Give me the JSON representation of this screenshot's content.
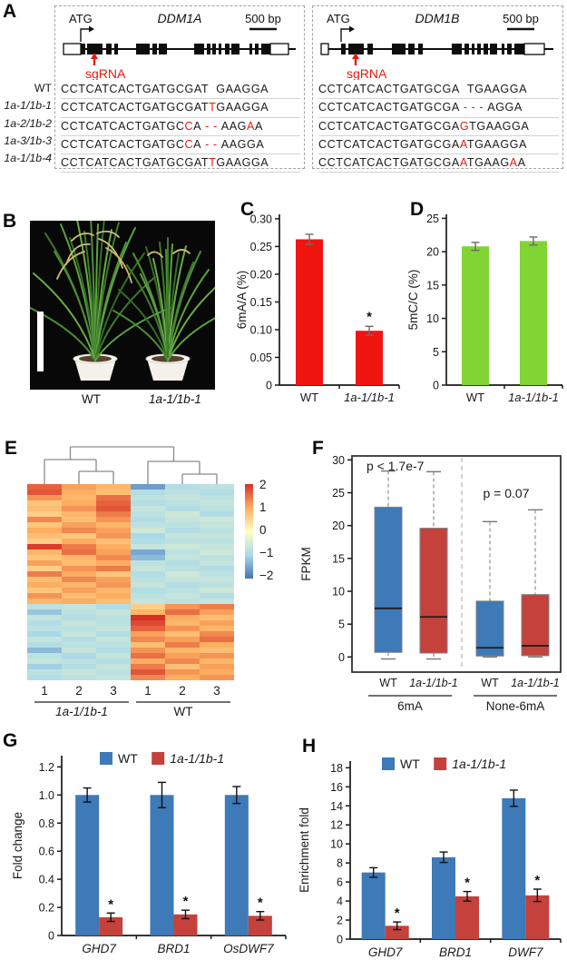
{
  "panels": {
    "A": "A",
    "B": "B",
    "C": "C",
    "D": "D",
    "E": "E",
    "F": "F",
    "G": "G",
    "H": "H"
  },
  "panelA": {
    "genes": [
      {
        "name": "DDM1A",
        "atg_label": "ATG",
        "scale_label": "500 bp",
        "sgrna_label": "sgRNA",
        "utrL": [
          8,
          19
        ],
        "utrR": [
          236,
          20
        ],
        "sgrna_x": 42,
        "atg_x": 27,
        "exons": [
          [
            27,
            5
          ],
          [
            34,
            17
          ],
          [
            55,
            6
          ],
          [
            64,
            4
          ],
          [
            88,
            15
          ],
          [
            106,
            5
          ],
          [
            113,
            9
          ],
          [
            152,
            11
          ],
          [
            166,
            4
          ],
          [
            172,
            4
          ],
          [
            179,
            3
          ],
          [
            186,
            5
          ],
          [
            193,
            9
          ],
          [
            213,
            3
          ],
          [
            219,
            4
          ],
          [
            226,
            10
          ]
        ]
      },
      {
        "name": "DDM1B",
        "atg_label": "ATG",
        "scale_label": "500 bp",
        "sgrna_label": "sgRNA",
        "utrL": [
          8,
          8
        ],
        "utrR": [
          232,
          22
        ],
        "sgrna_x": 46,
        "atg_x": 30,
        "exons": [
          [
            30,
            5
          ],
          [
            38,
            17
          ],
          [
            59,
            6
          ],
          [
            86,
            15
          ],
          [
            104,
            7
          ],
          [
            115,
            5
          ],
          [
            152,
            11
          ],
          [
            166,
            5
          ],
          [
            174,
            3
          ],
          [
            180,
            4
          ],
          [
            187,
            5
          ],
          [
            194,
            8
          ],
          [
            207,
            3
          ],
          [
            213,
            5
          ],
          [
            221,
            11
          ]
        ]
      }
    ],
    "row_labels": [
      {
        "text": "WT",
        "italic": false
      },
      {
        "text": "1a-1/1b-1",
        "italic": true
      },
      {
        "text": "1a-2/1b-2",
        "italic": true
      },
      {
        "text": "1a-3/1b-3",
        "italic": true
      },
      {
        "text": "1a-1/1b-4",
        "italic": true
      }
    ],
    "seq_left": [
      [
        [
          "CCTCATCACTGATGCGAT",
          "k"
        ],
        [
          "  ",
          "k"
        ],
        [
          "GAAGGA",
          "k"
        ]
      ],
      [
        [
          "CCTCATCACTGATGCGAT",
          "k"
        ],
        [
          "T",
          "r"
        ],
        [
          "GAAGGA",
          "k"
        ]
      ],
      [
        [
          "CCTCATCACTGATGC",
          "k"
        ],
        [
          "C",
          "r"
        ],
        [
          "A",
          "k"
        ],
        [
          " - - ",
          "r"
        ],
        [
          "AAG",
          "k"
        ],
        [
          "A",
          "r"
        ],
        [
          "A",
          "k"
        ]
      ],
      [
        [
          "CCTCATCACTGATGC",
          "k"
        ],
        [
          "C",
          "r"
        ],
        [
          "A",
          "k"
        ],
        [
          " - - ",
          "r"
        ],
        [
          "AAGGA",
          "k"
        ]
      ],
      [
        [
          "CCTCATCACTGATGCGAT",
          "k"
        ],
        [
          "T",
          "r"
        ],
        [
          "GAAGGA",
          "k"
        ]
      ]
    ],
    "seq_right": [
      [
        [
          "CCTCATCACTGATGCGA",
          "k"
        ],
        [
          "  ",
          "k"
        ],
        [
          "TGAAGGA",
          "k"
        ]
      ],
      [
        [
          "CCTCATCACTGATGCGA",
          "k"
        ],
        [
          " - - - ",
          "r"
        ],
        [
          "AGGA",
          "k"
        ]
      ],
      [
        [
          "CCTCATCACTGATGCGA",
          "k"
        ],
        [
          "G",
          "r"
        ],
        [
          "TGAAGGA",
          "k"
        ]
      ],
      [
        [
          "CCTCATCACTGATGCGA",
          "k"
        ],
        [
          "A",
          "r"
        ],
        [
          "TGAAGGA",
          "k"
        ]
      ],
      [
        [
          "CCTCATCACTGATGCGA",
          "k"
        ],
        [
          "A",
          "r"
        ],
        [
          "TGAAG",
          "k"
        ],
        [
          "A",
          "r"
        ],
        [
          "A",
          "k"
        ]
      ]
    ]
  },
  "panelB": {
    "labels": [
      {
        "text": "WT",
        "italic": false
      },
      {
        "text": "1a-1/1b-1",
        "italic": true
      }
    ]
  },
  "colors": {
    "red_bar": "#f01511",
    "green_bar": "#80d434",
    "blue": "#3e79b8",
    "brick": "#c5413c",
    "sgrna_red": "#e8190f",
    "axis": "#1a1a1a",
    "heatmap_stops": [
      "#4575b4",
      "#abd9e9",
      "#ffffbf",
      "#fdae61",
      "#d73027"
    ]
  },
  "chart_data": [
    {
      "id": "C",
      "type": "bar",
      "ylabel": "6mA/A (%)",
      "categories": [
        {
          "text": "WT",
          "italic": false
        },
        {
          "text": "1a-1/1b-1",
          "italic": true
        }
      ],
      "values": [
        0.263,
        0.098
      ],
      "errors": [
        0.009,
        0.008
      ],
      "sig": [
        "",
        "*"
      ],
      "bar_color": "#f01511",
      "err_color": "#6b6b6b",
      "ylim": [
        0,
        0.308
      ],
      "yticks": [
        0,
        0.05,
        0.1,
        0.15,
        0.2,
        0.25,
        0.3
      ],
      "ytick_labels": [
        "0",
        "0.05",
        "0.10",
        "0.15",
        "0.20",
        "0.25",
        "0.30"
      ]
    },
    {
      "id": "D",
      "type": "bar",
      "ylabel": "5mC/C (%)",
      "categories": [
        {
          "text": "WT",
          "italic": false
        },
        {
          "text": "1a-1/1b-1",
          "italic": true
        }
      ],
      "values": [
        20.8,
        21.6
      ],
      "errors": [
        0.6,
        0.6
      ],
      "sig": [
        "",
        ""
      ],
      "bar_color": "#80d434",
      "err_color": "#6b6b6b",
      "ylim": [
        0,
        25.6
      ],
      "yticks": [
        0,
        5,
        10,
        15,
        20,
        25
      ],
      "ytick_labels": [
        "0",
        "5",
        "10",
        "15",
        "20",
        "25"
      ]
    },
    {
      "id": "E",
      "type": "heatmap",
      "col_labels": [
        "1",
        "2",
        "3",
        "1",
        "2",
        "3"
      ],
      "group_labels": [
        {
          "text": "1a-1/1b-1",
          "italic": true,
          "serif": false
        },
        {
          "text": "WT",
          "italic": false,
          "serif": true
        }
      ],
      "colorbar_ticks": [
        "2",
        "1",
        "0",
        "−1",
        "−2"
      ],
      "value_domain": [
        -2,
        2
      ],
      "matrix": [
        [
          1.6,
          1.1,
          0.9,
          -1.6,
          -0.9,
          -0.8
        ],
        [
          1.7,
          1.0,
          0.8,
          -0.9,
          -0.8,
          -0.9
        ],
        [
          1.2,
          0.9,
          1.5,
          -0.8,
          -0.7,
          -0.8
        ],
        [
          0.7,
          1.0,
          1.6,
          -0.9,
          -0.8,
          -0.7
        ],
        [
          0.8,
          1.2,
          1.7,
          -0.7,
          -0.9,
          -0.8
        ],
        [
          0.6,
          0.9,
          1.4,
          -0.8,
          -0.6,
          -0.9
        ],
        [
          1.3,
          0.8,
          1.2,
          -0.9,
          -0.7,
          -0.6
        ],
        [
          0.7,
          1.1,
          0.9,
          -0.8,
          -0.8,
          -0.7
        ],
        [
          1.0,
          1.3,
          1.1,
          -0.6,
          -0.9,
          -0.8
        ],
        [
          0.8,
          0.7,
          1.2,
          -1.0,
          -0.7,
          -0.7
        ],
        [
          0.6,
          1.0,
          0.8,
          -0.9,
          -0.8,
          -0.8
        ],
        [
          1.9,
          1.4,
          1.0,
          -0.7,
          -0.6,
          -0.7
        ],
        [
          0.9,
          1.5,
          1.1,
          -1.5,
          -0.8,
          -0.6
        ],
        [
          0.7,
          0.9,
          1.3,
          -1.3,
          -0.7,
          -0.8
        ],
        [
          1.1,
          0.8,
          1.0,
          -0.8,
          -0.9,
          -0.7
        ],
        [
          0.6,
          1.2,
          1.4,
          -0.7,
          -0.8,
          -0.9
        ],
        [
          1.4,
          1.0,
          0.7,
          -0.9,
          -0.6,
          -0.8
        ],
        [
          0.8,
          1.3,
          1.1,
          -0.8,
          -0.7,
          -0.7
        ],
        [
          1.0,
          0.9,
          1.2,
          -0.7,
          -0.9,
          -0.8
        ],
        [
          0.7,
          1.1,
          0.9,
          -0.9,
          -0.8,
          -0.6
        ],
        [
          1.2,
          0.8,
          1.0,
          -0.8,
          -0.7,
          -0.9
        ],
        [
          0.9,
          1.0,
          0.8,
          -0.7,
          -0.8,
          -0.7
        ],
        [
          -0.8,
          -0.7,
          -0.9,
          0.6,
          1.2,
          1.4
        ],
        [
          -1.2,
          -0.8,
          -0.7,
          0.9,
          1.5,
          1.1
        ],
        [
          -0.7,
          -0.9,
          -0.8,
          2.0,
          1.0,
          0.8
        ],
        [
          -0.9,
          -0.7,
          -0.8,
          1.8,
          0.9,
          1.1
        ],
        [
          -0.8,
          -0.8,
          -0.7,
          1.6,
          1.2,
          0.9
        ],
        [
          -1.0,
          -0.7,
          -0.9,
          1.1,
          0.8,
          1.3
        ],
        [
          -0.7,
          -0.9,
          -0.7,
          1.3,
          1.1,
          1.5
        ],
        [
          -0.9,
          -0.8,
          -0.8,
          0.8,
          1.4,
          1.0
        ],
        [
          -1.3,
          -0.7,
          -0.9,
          1.2,
          0.9,
          0.8
        ],
        [
          -0.8,
          -1.0,
          -0.7,
          1.5,
          1.1,
          1.2
        ],
        [
          -0.7,
          -0.8,
          -0.9,
          1.0,
          1.3,
          0.9
        ],
        [
          -1.1,
          -0.9,
          -0.7,
          1.4,
          0.8,
          1.1
        ],
        [
          -0.8,
          -0.7,
          -0.8,
          1.7,
          1.2,
          1.0
        ],
        [
          -0.9,
          -0.8,
          -0.7,
          1.3,
          1.0,
          1.2
        ]
      ]
    },
    {
      "id": "F",
      "type": "box",
      "ylabel": "FPKM",
      "ylim": [
        -2.3,
        30.6
      ],
      "yticks": [
        0,
        5,
        10,
        15,
        20,
        25,
        30
      ],
      "ytick_labels": [
        "0",
        "5",
        "10",
        "15",
        "20",
        "25",
        "30"
      ],
      "groups": [
        "6mA",
        "None-6mA"
      ],
      "boxes": [
        {
          "label": "WT",
          "italic": false,
          "group": 0,
          "color": "#3e79b8",
          "low": -0.3,
          "q1": 0.7,
          "med": 7.4,
          "q3": 22.8,
          "high": 28.3
        },
        {
          "label": "1a-1/1b-1",
          "italic": true,
          "group": 0,
          "color": "#c5413c",
          "low": -0.3,
          "q1": 0.6,
          "med": 6.1,
          "q3": 19.6,
          "high": 28.2
        },
        {
          "label": "WT",
          "italic": false,
          "group": 1,
          "color": "#3e79b8",
          "low": 0.0,
          "q1": 0.15,
          "med": 1.4,
          "q3": 8.5,
          "high": 20.6
        },
        {
          "label": "1a-1/1b-1",
          "italic": true,
          "group": 1,
          "color": "#c5413c",
          "low": 0.0,
          "q1": 0.2,
          "med": 1.7,
          "q3": 9.5,
          "high": 22.4
        }
      ],
      "annotations": [
        {
          "text": "p < 1.7e-7"
        },
        {
          "text": "p = 0.07"
        }
      ]
    },
    {
      "id": "G",
      "type": "grouped_bar",
      "ylabel": "Fold change",
      "categories": [
        "GHD7",
        "BRD1",
        "OsDWF7"
      ],
      "series": [
        {
          "name": "WT",
          "serif": true,
          "italic": false,
          "color": "#3e79b8",
          "values": [
            1.0,
            1.0,
            1.0
          ],
          "errors": [
            0.05,
            0.09,
            0.06
          ],
          "sig": [
            "",
            "",
            ""
          ]
        },
        {
          "name": "1a-1/1b-1",
          "serif": false,
          "italic": true,
          "color": "#c5413c",
          "values": [
            0.13,
            0.15,
            0.14
          ],
          "errors": [
            0.03,
            0.03,
            0.03
          ],
          "sig": [
            "*",
            "*",
            "*"
          ]
        }
      ],
      "ylim": [
        0,
        1.28
      ],
      "yticks": [
        0,
        0.2,
        0.4,
        0.6,
        0.8,
        1.0,
        1.2
      ],
      "ytick_labels": [
        "0",
        "0.2",
        "0.4",
        "0.6",
        "0.8",
        "1.0",
        "1.2"
      ]
    },
    {
      "id": "H",
      "type": "grouped_bar",
      "ylabel": "Enrichment fold",
      "categories": [
        "GHD7",
        "BRD1",
        "DWF7"
      ],
      "series": [
        {
          "name": "WT",
          "serif": true,
          "italic": false,
          "color": "#3e79b8",
          "values": [
            7.0,
            8.6,
            14.8
          ],
          "errors": [
            0.5,
            0.55,
            0.85
          ],
          "sig": [
            "",
            "",
            ""
          ]
        },
        {
          "name": "1a-1/1b-1",
          "serif": false,
          "italic": true,
          "color": "#c5413c",
          "values": [
            1.4,
            4.5,
            4.6
          ],
          "errors": [
            0.4,
            0.5,
            0.65
          ],
          "sig": [
            "*",
            "*",
            "*"
          ]
        }
      ],
      "ylim": [
        0,
        18.7
      ],
      "yticks": [
        0,
        2,
        4,
        6,
        8,
        10,
        12,
        14,
        16,
        18
      ],
      "ytick_labels": [
        "0",
        "2",
        "4",
        "6",
        "8",
        "10",
        "12",
        "14",
        "16",
        "18"
      ]
    }
  ]
}
